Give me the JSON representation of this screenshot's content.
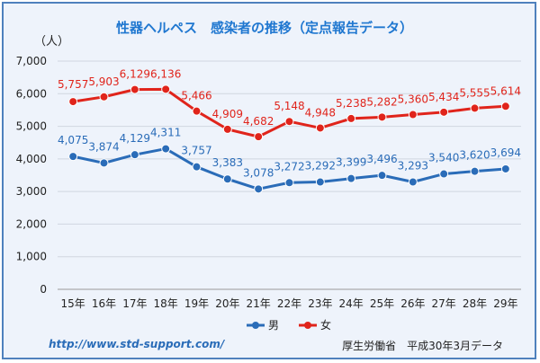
{
  "chart_data": {
    "type": "line",
    "title": "性器ヘルペス　感染者の推移（定点報告データ）",
    "ylabel": "（人）",
    "ylim": [
      0,
      7000
    ],
    "yticks": [
      "0",
      "1,000",
      "2,000",
      "3,000",
      "4,000",
      "5,000",
      "6,000",
      "7,000"
    ],
    "ytick_values": [
      0,
      1000,
      2000,
      3000,
      4000,
      5000,
      6000,
      7000
    ],
    "categories": [
      "15年",
      "16年",
      "17年",
      "18年",
      "19年",
      "20年",
      "21年",
      "22年",
      "23年",
      "24年",
      "25年",
      "26年",
      "27年",
      "28年",
      "29年"
    ],
    "grid": "horizontal",
    "legend_position": "bottom",
    "series": [
      {
        "name": "男",
        "color": "#2a6cb8",
        "values": [
          4075,
          3874,
          4129,
          4311,
          3757,
          3383,
          3078,
          3272,
          3292,
          3399,
          3496,
          3293,
          3540,
          3620,
          3694
        ],
        "labels": [
          "4,075",
          "3,874",
          "4,129",
          "4,311",
          "3,757",
          "3,383",
          "3,078",
          "3,272",
          "3,292",
          "3,399",
          "3,496",
          "3,293",
          "3,540",
          "3,620",
          "3,694"
        ]
      },
      {
        "name": "女",
        "color": "#e0241b",
        "values": [
          5757,
          5903,
          6129,
          6136,
          5466,
          4909,
          4682,
          5148,
          4948,
          5238,
          5282,
          5360,
          5434,
          5555,
          5614
        ],
        "labels": [
          "5,757",
          "5,903",
          "6,129",
          "6,136",
          "5,466",
          "4,909",
          "4,682",
          "5,148",
          "4,948",
          "5,238",
          "5,282",
          "5,360",
          "5,434",
          "5,555",
          "5,614"
        ]
      }
    ]
  },
  "footer": {
    "url": "http://www.std-support.com/",
    "source": "厚生労働省　平成30年3月データ"
  }
}
